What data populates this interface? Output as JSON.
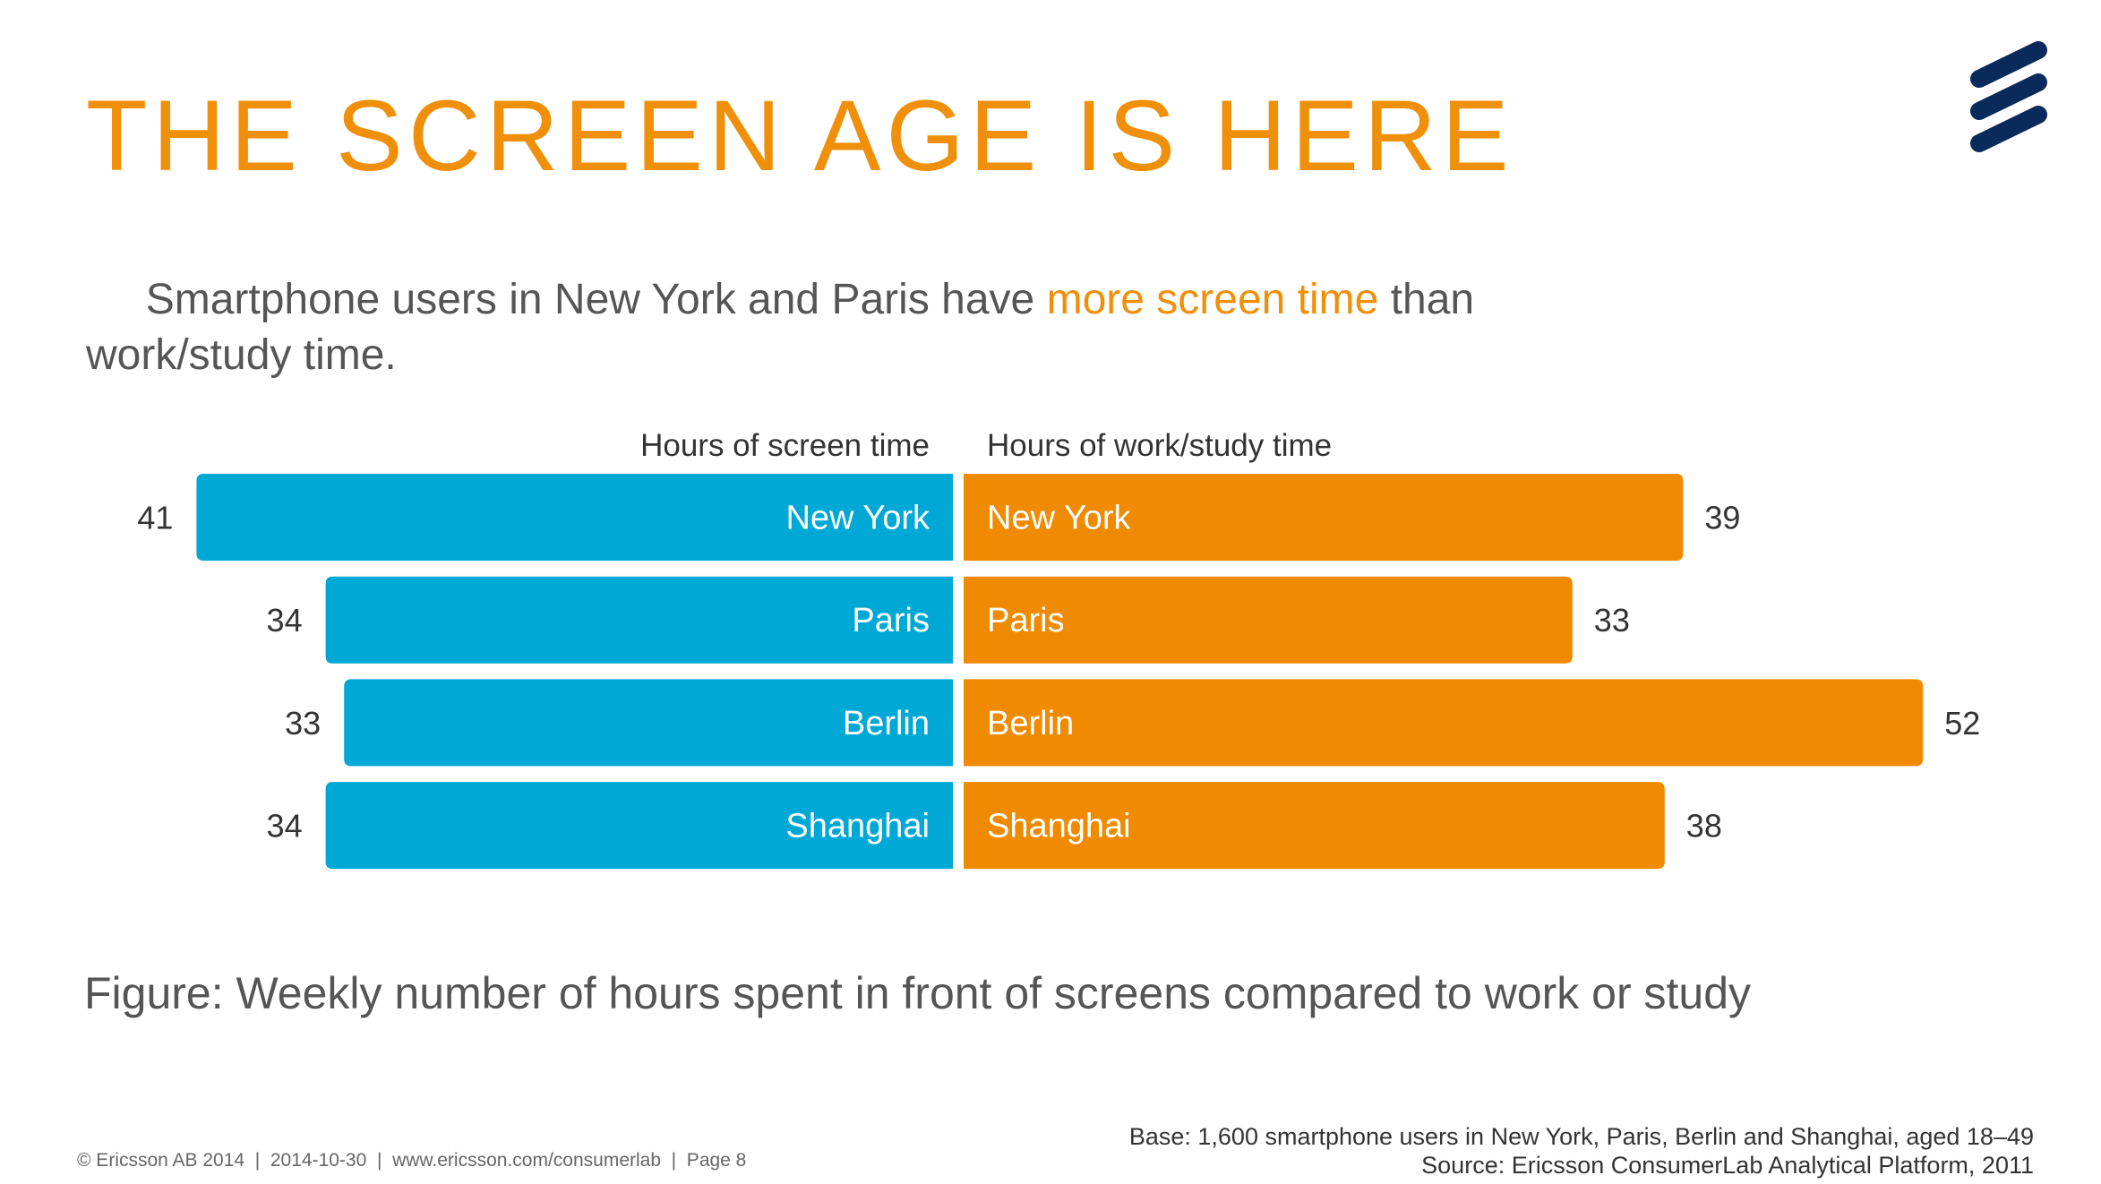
{
  "header": {
    "title": "THE SCREEN AGE IS HERE",
    "subtitle": [
      [
        "Smartphone users in New York and Paris have ",
        "more screen time",
        " than"
      ],
      [
        "work/study time."
      ]
    ]
  },
  "chart_data": {
    "type": "butterfly",
    "categories": [
      "New York",
      "Paris",
      "Berlin",
      "Shanghai"
    ],
    "series": [
      {
        "name": "Hours of screen time",
        "color": "#00a8d6",
        "values": [
          41,
          34,
          33,
          34
        ]
      },
      {
        "name": "Hours of work/study time",
        "color": "#f08a00",
        "values": [
          39,
          33,
          52,
          38
        ]
      }
    ],
    "caption": "Figure: Weekly number of hours spent in front of screens compared to work or study"
  },
  "footer": {
    "left": "© Ericsson AB 2014  |  2014-10-30  |  www.ericsson.com/consumerlab  |  Page 8",
    "base": "Base: 1,600 smartphone users in New York, Paris, Berlin and Shanghai, aged 18–49",
    "source": "Source: Ericsson ConsumerLab Analytical Platform, 2011"
  }
}
